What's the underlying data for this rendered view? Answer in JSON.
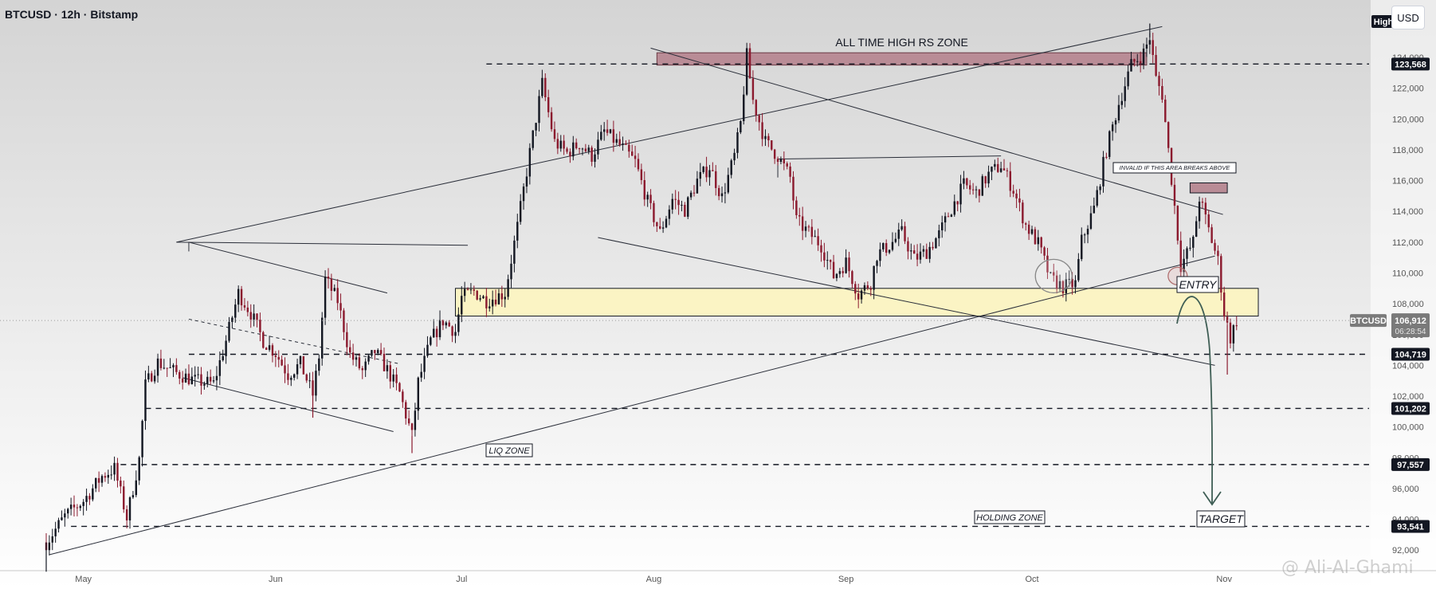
{
  "header": {
    "title": "BTCUSD · 12h · Bitstamp",
    "currency_button": "USD"
  },
  "watermark": "@ Ali-Al-Ghami",
  "chart_data": {
    "type": "candlestick",
    "symbol": "BTCUSD",
    "ylim": [
      90500,
      127500
    ],
    "yticks": [
      92000,
      94000,
      96000,
      98000,
      100000,
      102000,
      104000,
      106000,
      108000,
      110000,
      112000,
      114000,
      116000,
      118000,
      120000,
      122000,
      124000
    ],
    "x_start_day": 0,
    "months": [
      {
        "label": "May",
        "day": 6
      },
      {
        "label": "Jun",
        "day": 37
      },
      {
        "label": "Jul",
        "day": 67
      },
      {
        "label": "Aug",
        "day": 98
      },
      {
        "label": "Sep",
        "day": 129
      },
      {
        "label": "Oct",
        "day": 159
      },
      {
        "label": "Nov",
        "day": 190
      }
    ],
    "anchors": [
      [
        0,
        92500
      ],
      [
        3,
        94200
      ],
      [
        6,
        95200
      ],
      [
        9,
        96800
      ],
      [
        11,
        97300
      ],
      [
        13,
        94100
      ],
      [
        15,
        97900
      ],
      [
        16,
        102700
      ],
      [
        18,
        104200
      ],
      [
        21,
        103500
      ],
      [
        24,
        103000
      ],
      [
        27,
        102800
      ],
      [
        29,
        105600
      ],
      [
        31,
        108700
      ],
      [
        33,
        107400
      ],
      [
        35,
        105600
      ],
      [
        37,
        104800
      ],
      [
        39,
        103400
      ],
      [
        41,
        104100
      ],
      [
        43,
        102100
      ],
      [
        44,
        104600
      ],
      [
        45,
        109600
      ],
      [
        47,
        108200
      ],
      [
        49,
        104700
      ],
      [
        51,
        103600
      ],
      [
        53,
        104900
      ],
      [
        55,
        103700
      ],
      [
        57,
        102200
      ],
      [
        59,
        99400
      ],
      [
        60,
        102900
      ],
      [
        62,
        105600
      ],
      [
        64,
        106900
      ],
      [
        66,
        106200
      ],
      [
        67,
        108400
      ],
      [
        69,
        108800
      ],
      [
        71,
        108200
      ],
      [
        74,
        108700
      ],
      [
        76,
        113000
      ],
      [
        78,
        117800
      ],
      [
        80,
        122300
      ],
      [
        82,
        118500
      ],
      [
        84,
        117800
      ],
      [
        86,
        118400
      ],
      [
        88,
        117600
      ],
      [
        90,
        119200
      ],
      [
        93,
        118100
      ],
      [
        95,
        117200
      ],
      [
        97,
        114600
      ],
      [
        99,
        112600
      ],
      [
        101,
        114800
      ],
      [
        103,
        114100
      ],
      [
        105,
        116000
      ],
      [
        107,
        116900
      ],
      [
        109,
        114900
      ],
      [
        111,
        117600
      ],
      [
        112,
        119700
      ],
      [
        113,
        124100
      ],
      [
        114,
        121200
      ],
      [
        116,
        118500
      ],
      [
        118,
        117600
      ],
      [
        120,
        116200
      ],
      [
        121,
        113400
      ],
      [
        123,
        112600
      ],
      [
        125,
        111800
      ],
      [
        127,
        109800
      ],
      [
        129,
        110700
      ],
      [
        131,
        108600
      ],
      [
        133,
        109400
      ],
      [
        134,
        111200
      ],
      [
        136,
        111800
      ],
      [
        138,
        112600
      ],
      [
        140,
        110900
      ],
      [
        142,
        111400
      ],
      [
        144,
        112500
      ],
      [
        146,
        114200
      ],
      [
        148,
        115700
      ],
      [
        150,
        115200
      ],
      [
        152,
        116400
      ],
      [
        154,
        117000
      ],
      [
        156,
        115400
      ],
      [
        158,
        113100
      ],
      [
        160,
        111900
      ],
      [
        162,
        109600
      ],
      [
        164,
        109100
      ],
      [
        166,
        109300
      ],
      [
        167,
        112100
      ],
      [
        169,
        114200
      ],
      [
        171,
        118000
      ],
      [
        173,
        121000
      ],
      [
        175,
        123500
      ],
      [
        177,
        124300
      ],
      [
        178,
        125300
      ],
      [
        179,
        122600
      ],
      [
        180,
        121600
      ],
      [
        182,
        114300
      ],
      [
        183,
        110500
      ],
      [
        185,
        112000
      ],
      [
        186,
        114900
      ],
      [
        188,
        112100
      ],
      [
        189,
        110800
      ],
      [
        190,
        107400
      ],
      [
        191,
        105800
      ],
      [
        192,
        106900
      ]
    ],
    "annotations": {
      "ath_zone_label": "ALL TIME HIGH RS ZONE",
      "invalid_label": "INVALID IF THIS AREA BREAKS ABOVE",
      "entry_label": "ENTRY",
      "target_label": "TARGET",
      "liq_zone_label": "LIQ ZONE",
      "holding_zone_label": "HOLDING ZONE"
    },
    "levels": [
      {
        "value": 123568,
        "label": "123,568"
      },
      {
        "value": 104719,
        "label": "104,719"
      },
      {
        "value": 101202,
        "label": "101,202"
      },
      {
        "value": 97557,
        "label": "97,557"
      },
      {
        "value": 93541,
        "label": "93,541"
      }
    ],
    "current_price": {
      "symbol": "BTCUSD",
      "value": 106912,
      "label": "106,912",
      "countdown": "06:28:54"
    },
    "high_badge": "High",
    "colors": {
      "up": "#131722",
      "down": "#8b1a2e",
      "entry_zone": "#fbf4c4",
      "ath_zone": "#b98c96",
      "arrow": "#3f5e55"
    }
  }
}
